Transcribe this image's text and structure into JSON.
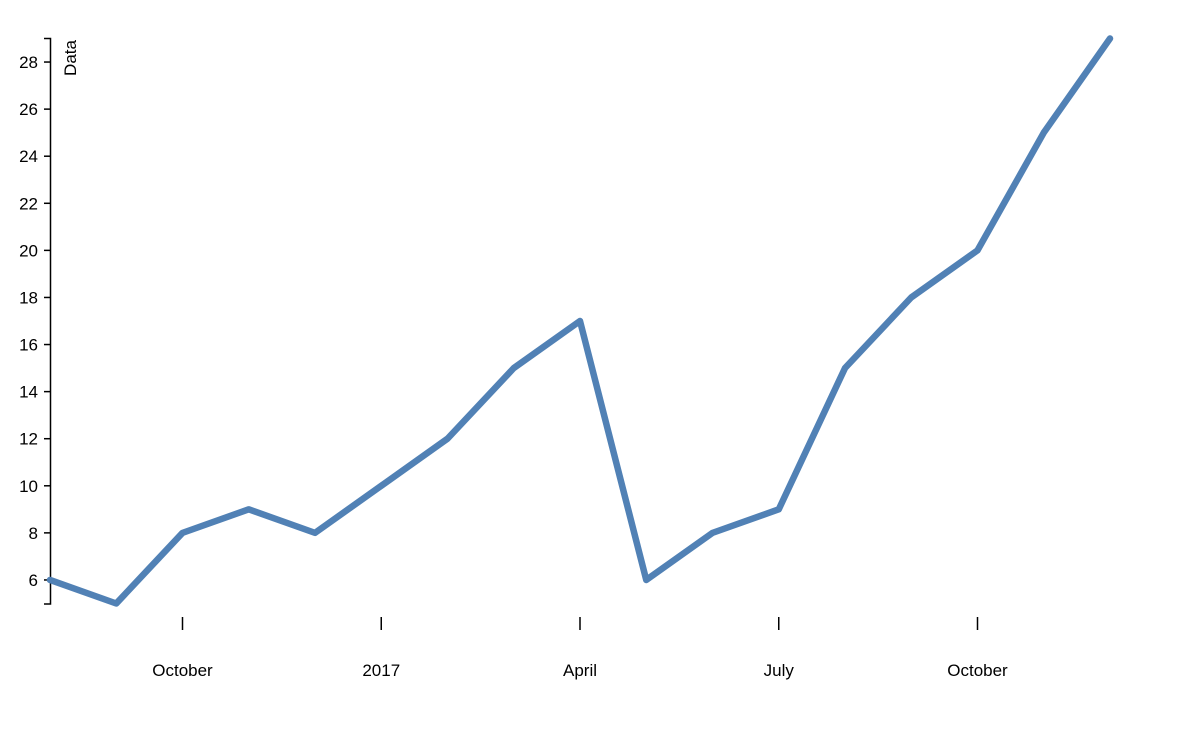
{
  "chart_data": {
    "type": "line",
    "y_label": "Data",
    "x": [
      "2016-08",
      "2016-09",
      "2016-10",
      "2016-11",
      "2016-12",
      "2017-01",
      "2017-02",
      "2017-03",
      "2017-04",
      "2017-05",
      "2017-06",
      "2017-07",
      "2017-08",
      "2017-09",
      "2017-10",
      "2017-11",
      "2017-12"
    ],
    "values": [
      6,
      5,
      8,
      9,
      8,
      10,
      12,
      15,
      17,
      6,
      8,
      9,
      15,
      18,
      20,
      25,
      29
    ],
    "color": "#5181b5",
    "xlim": [
      "2016-08",
      "2017-12"
    ],
    "xticks": [
      {
        "value": "2016-10",
        "label": "October"
      },
      {
        "value": "2017-01",
        "label": "2017"
      },
      {
        "value": "2017-04",
        "label": "April"
      },
      {
        "value": "2017-07",
        "label": "July"
      },
      {
        "value": "2017-10",
        "label": "October"
      }
    ],
    "ylim": [
      5,
      29
    ],
    "yticks": [
      6,
      8,
      10,
      12,
      14,
      16,
      18,
      20,
      22,
      24,
      26,
      28
    ]
  }
}
